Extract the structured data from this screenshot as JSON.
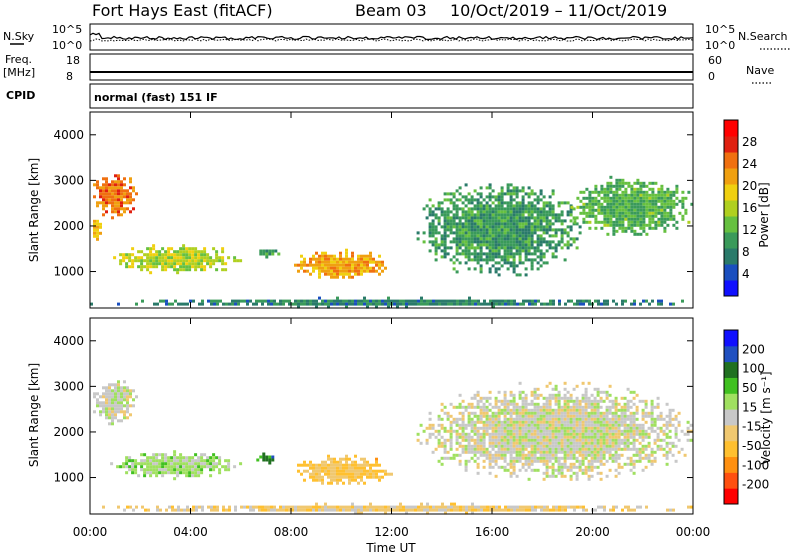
{
  "header": {
    "station": "Fort Hays East (fitACF)",
    "beam": "Beam 03",
    "dates": "10/Oct/2019 – 11/Oct/2019"
  },
  "strips": {
    "nsky_label": "N.Sky",
    "nsearch_label": "N.Search",
    "counts_ticks_left": [
      "10^5",
      "10^0"
    ],
    "counts_ticks_right": [
      "10^5",
      "10^0"
    ],
    "freq_label_1": "Freq.",
    "freq_label_2": "[MHz]",
    "freq_ticks": [
      "18",
      "8"
    ],
    "nave_label": "Nave",
    "nave_ticks": [
      "60",
      "0"
    ],
    "cpid_label": "CPID",
    "cpid_value": "normal (fast) 151 IF"
  },
  "colors": {
    "power_scale": [
      "#1010ff",
      "#1a4fbf",
      "#2a7a6a",
      "#3a9a5a",
      "#66c040",
      "#b0d020",
      "#f0d010",
      "#f0a010",
      "#f07010",
      "#e02010",
      "#ff0000"
    ],
    "velocity_scale": [
      "#ff0000",
      "#ff5010",
      "#ff9010",
      "#ffc030",
      "#f0c870",
      "#c8c8c8",
      "#a0e060",
      "#40c020",
      "#207020",
      "#2050c0",
      "#1010ff"
    ]
  },
  "chart_data": [
    {
      "type": "heatmap",
      "panel": "power",
      "ylabel": "Slant Range [km]",
      "yticks": [
        "4000",
        "3000",
        "2000",
        "1000"
      ],
      "ylim": [
        200,
        4500
      ],
      "x_ticks": [
        "00:00",
        "04:00",
        "08:00",
        "12:00",
        "16:00",
        "20:00",
        "00:00"
      ],
      "colorbar_label": "Power [dB]",
      "colorbar_ticks": [
        "28",
        "24",
        "20",
        "16",
        "12",
        "8",
        "4"
      ],
      "colorbar_range": [
        0,
        32
      ],
      "regions": [
        {
          "t_start": 0.0,
          "t_end": 1.8,
          "r_min": 2200,
          "r_max": 3200,
          "value": 24
        },
        {
          "t_start": 0.0,
          "t_end": 0.4,
          "r_min": 1700,
          "r_max": 2200,
          "value": 20
        },
        {
          "t_start": 0.8,
          "t_end": 6.0,
          "r_min": 1000,
          "r_max": 1600,
          "value": 16
        },
        {
          "t_start": 6.5,
          "t_end": 7.5,
          "r_min": 1350,
          "r_max": 1550,
          "value": 10
        },
        {
          "t_start": 8.0,
          "t_end": 12.0,
          "r_min": 850,
          "r_max": 1500,
          "value": 22
        },
        {
          "t_start": 13.0,
          "t_end": 19.5,
          "r_min": 950,
          "r_max": 3000,
          "value": 10
        },
        {
          "t_start": 19.0,
          "t_end": 24.0,
          "r_min": 1800,
          "r_max": 3100,
          "value": 12
        },
        {
          "t_start": 0.0,
          "t_end": 24.0,
          "r_min": 250,
          "r_max": 450,
          "value": 8
        }
      ]
    },
    {
      "type": "heatmap",
      "panel": "velocity",
      "ylabel": "Slant Range [km]",
      "yticks": [
        "4000",
        "3000",
        "2000",
        "1000"
      ],
      "ylim": [
        200,
        4500
      ],
      "x_ticks": [
        "00:00",
        "04:00",
        "08:00",
        "12:00",
        "16:00",
        "20:00",
        "00:00"
      ],
      "xlabel": "Time UT",
      "colorbar_label": "Velocity [m s⁻¹]",
      "colorbar_ticks": [
        "200",
        "100",
        "50",
        "15",
        "-15",
        "-50",
        "-100",
        "-200"
      ],
      "colorbar_range": [
        -250,
        250
      ],
      "regions": [
        {
          "t_start": 0.0,
          "t_end": 1.8,
          "r_min": 2200,
          "r_max": 3200,
          "value": 0
        },
        {
          "t_start": 0.8,
          "t_end": 6.0,
          "r_min": 1000,
          "r_max": 1600,
          "value": 40
        },
        {
          "t_start": 6.5,
          "t_end": 7.5,
          "r_min": 1350,
          "r_max": 1550,
          "value": 120
        },
        {
          "t_start": 8.0,
          "t_end": 12.0,
          "r_min": 850,
          "r_max": 1500,
          "value": -70
        },
        {
          "t_start": 13.0,
          "t_end": 24.0,
          "r_min": 950,
          "r_max": 3100,
          "value": 0
        },
        {
          "t_start": 0.0,
          "t_end": 24.0,
          "r_min": 250,
          "r_max": 450,
          "value": -40
        }
      ]
    }
  ]
}
